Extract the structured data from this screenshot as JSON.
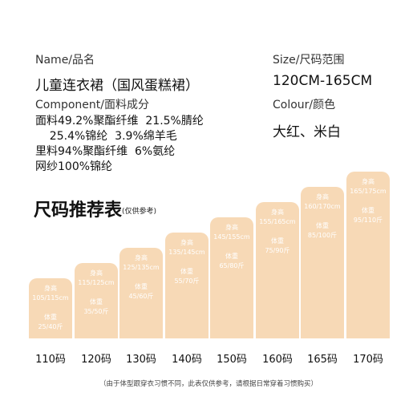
{
  "info": {
    "name_label": "Name/品名",
    "name_value": "儿童连衣裙（国风蛋糕裙）",
    "size_label": "Size/尺码范围",
    "size_value": "120CM-165CM",
    "component_label": "Component/面料成分",
    "component_lines": [
      "面料49.2%聚酯纤维  21.5%腈纶",
      "    25.4%锦纶  3.9%绵羊毛",
      "里料94%聚酯纤维  6%氨纶",
      "网纱100%锦纶"
    ],
    "colour_label": "Colour/颜色",
    "colour_value": "大红、米白"
  },
  "chart": {
    "title": "尺码推荐表",
    "subtitle": "(仅供参考)",
    "height_label": "身高",
    "weight_label": "体重",
    "bar_color": "#f7d9b6",
    "sizes": [
      {
        "size": "110码",
        "height": "105/115cm",
        "weight": "25/40斤",
        "level": 1
      },
      {
        "size": "120码",
        "height": "115/125cm",
        "weight": "35/50斤",
        "level": 2
      },
      {
        "size": "130码",
        "height": "125/135cm",
        "weight": "45/60斤",
        "level": 3
      },
      {
        "size": "140码",
        "height": "135/145cm",
        "weight": "55/70斤",
        "level": 4
      },
      {
        "size": "150码",
        "height": "145/155cm",
        "weight": "65/80斤",
        "level": 5
      },
      {
        "size": "160码",
        "height": "155/165cm",
        "weight": "75/90斤",
        "level": 6
      },
      {
        "size": "165码",
        "height": "160/170cm",
        "weight": "85/100斤",
        "level": 7
      },
      {
        "size": "170码",
        "height": "165/175cm",
        "weight": "95/110斤",
        "level": 8
      }
    ]
  },
  "footnote": "（由于体型跟穿衣习惯不同，此表仅供参考，请根据日常穿着习惯购买）"
}
